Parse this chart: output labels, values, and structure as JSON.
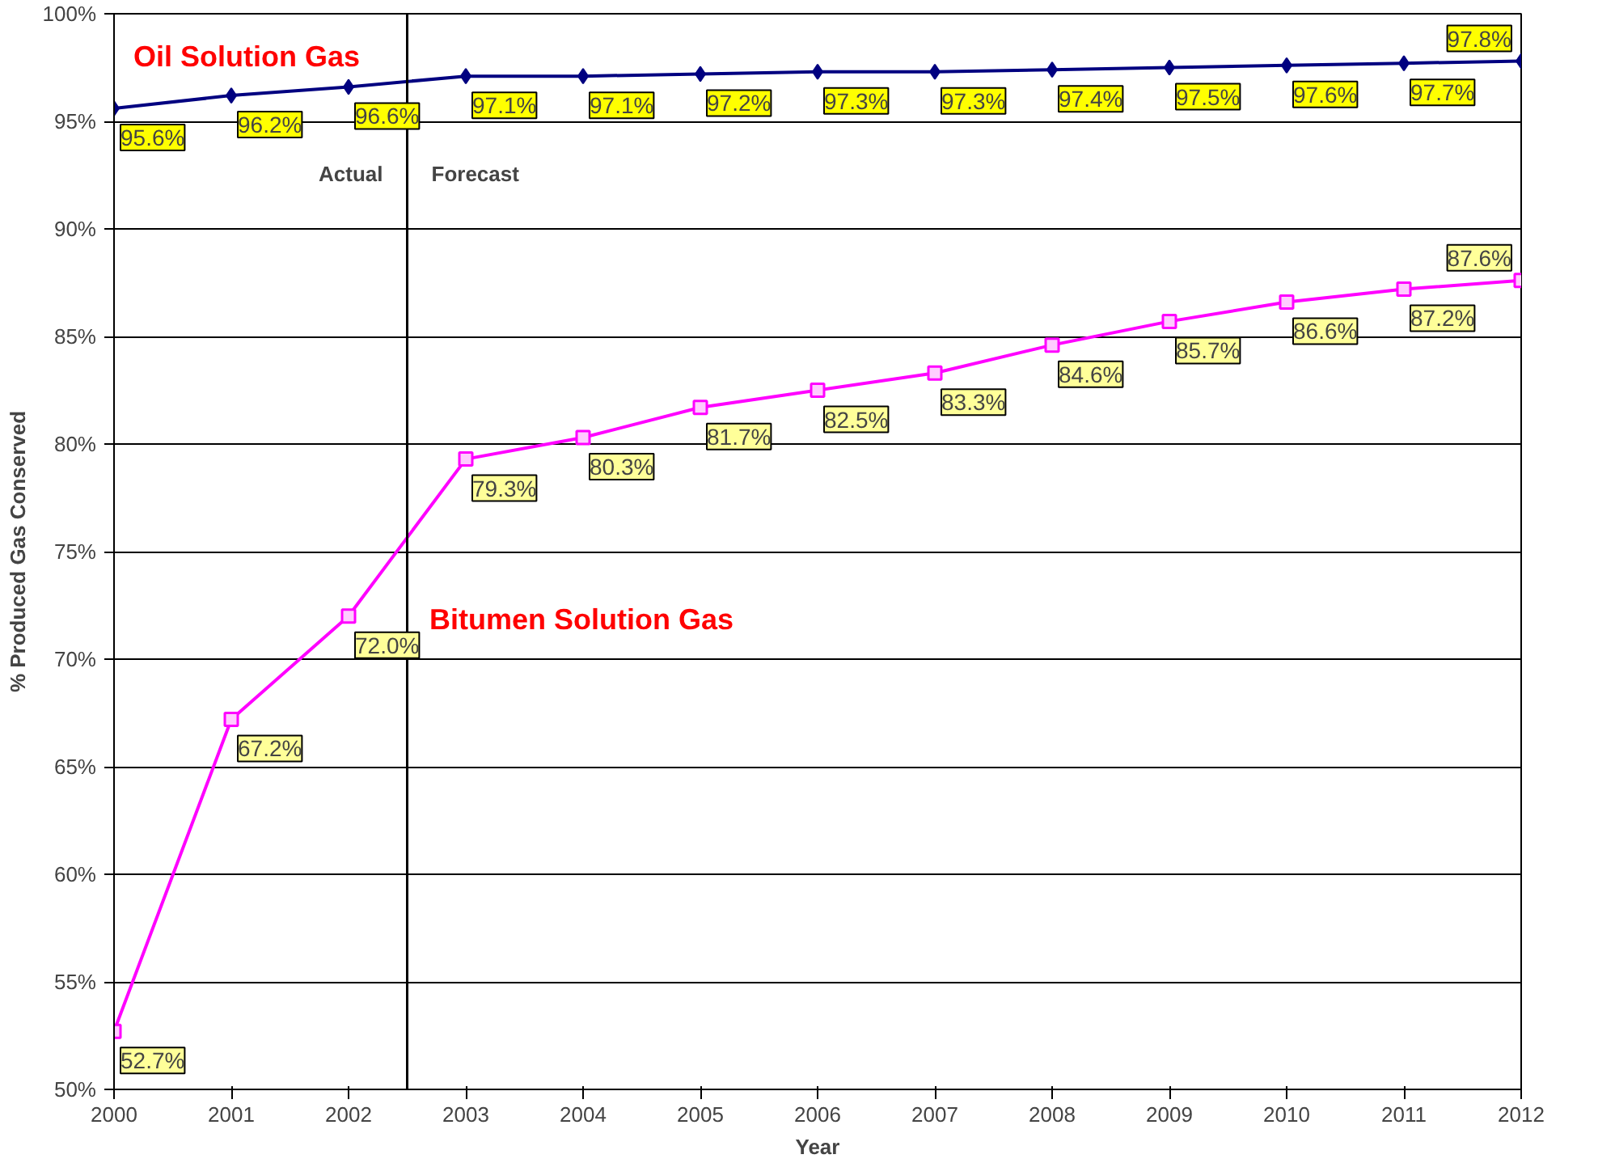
{
  "chart_data": {
    "type": "line",
    "xlabel": "Year",
    "ylabel": "% Produced Gas Conserved",
    "x": [
      2000,
      2001,
      2002,
      2003,
      2004,
      2005,
      2006,
      2007,
      2008,
      2009,
      2010,
      2011,
      2012
    ],
    "series": [
      {
        "name": "Oil Solution Gas",
        "color": "#000080",
        "marker": "diamond",
        "values": [
          95.6,
          96.2,
          96.6,
          97.1,
          97.1,
          97.2,
          97.3,
          97.3,
          97.4,
          97.5,
          97.6,
          97.7,
          97.8
        ],
        "value_labels": [
          "95.6%",
          "96.2%",
          "96.6%",
          "97.1%",
          "97.1%",
          "97.2%",
          "97.3%",
          "97.3%",
          "97.4%",
          "97.5%",
          "97.6%",
          "97.7%",
          "97.8%"
        ]
      },
      {
        "name": "Bitumen Solution Gas",
        "color": "#ff00ff",
        "marker": "square",
        "values": [
          52.7,
          67.2,
          72.0,
          79.3,
          80.3,
          81.7,
          82.5,
          83.3,
          84.6,
          85.7,
          86.6,
          87.2,
          87.6
        ],
        "value_labels": [
          "52.7%",
          "67.2%",
          "72.0%",
          "79.3%",
          "80.3%",
          "81.7%",
          "82.5%",
          "83.3%",
          "84.6%",
          "85.7%",
          "86.6%",
          "87.2%",
          "87.6%"
        ]
      }
    ],
    "xlim": [
      2000,
      2012
    ],
    "xticks": [
      2000,
      2001,
      2002,
      2003,
      2004,
      2005,
      2006,
      2007,
      2008,
      2009,
      2010,
      2011,
      2012
    ],
    "ylim": [
      50,
      100
    ],
    "yticks": [
      {
        "value": 50,
        "label": "50%"
      },
      {
        "value": 55,
        "label": "55%"
      },
      {
        "value": 60,
        "label": "60%"
      },
      {
        "value": 65,
        "label": "65%"
      },
      {
        "value": 70,
        "label": "70%"
      },
      {
        "value": 75,
        "label": "75%"
      },
      {
        "value": 80,
        "label": "80%"
      },
      {
        "value": 85,
        "label": "85%"
      },
      {
        "value": 90,
        "label": "90%"
      },
      {
        "value": 95,
        "label": "95%"
      },
      {
        "value": 100,
        "label": "100%"
      }
    ],
    "grid": "y",
    "ref_lines": [
      {
        "axis": "x",
        "value": 2002.5,
        "color": "#000000"
      }
    ],
    "annotations": [
      {
        "text": "Actual",
        "x": 2002.5,
        "y": 92
      },
      {
        "text": "Forecast",
        "x": 2002.5,
        "y": 92
      }
    ]
  }
}
